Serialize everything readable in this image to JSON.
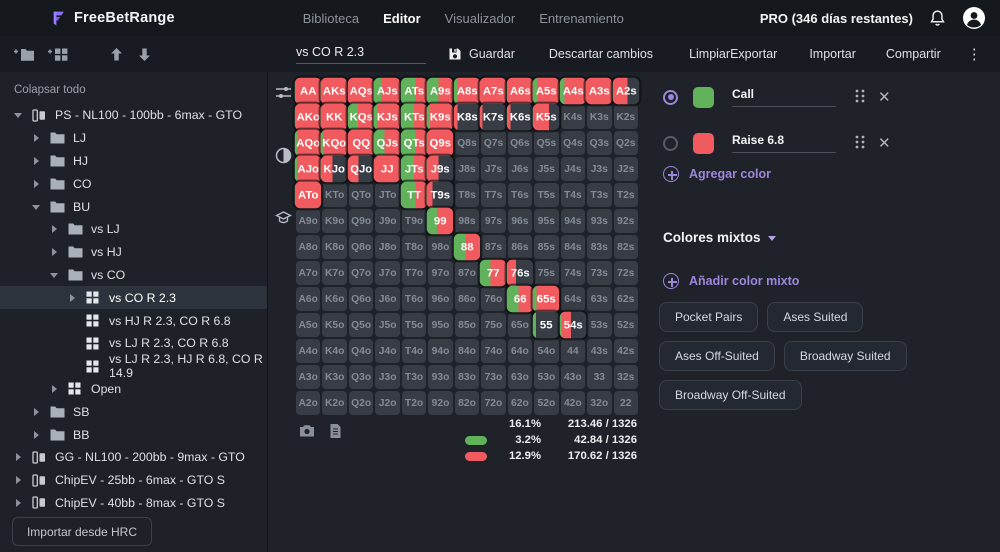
{
  "header": {
    "brand": "FreeBetRange",
    "tabs": [
      {
        "label": "Biblioteca",
        "active": false
      },
      {
        "label": "Editor",
        "active": true
      },
      {
        "label": "Visualizador",
        "active": false
      },
      {
        "label": "Entrenamiento",
        "active": false
      }
    ],
    "pro_label": "PRO (346 días restantes)",
    "icons": [
      "bell-icon",
      "avatar-icon"
    ]
  },
  "toolbar": {
    "left_icons": [
      "add-folder-icon",
      "add-range-icon",
      "move-up-icon",
      "move-down-icon"
    ],
    "range_name": "vs CO R 2.3",
    "guardar": "Guardar",
    "descartar": "Descartar cambios",
    "limpiar": "Limpiar",
    "exportar": "Exportar",
    "importar": "Importar",
    "compartir": "Compartir",
    "menu_icon": "kebab-menu-icon"
  },
  "sidebar": {
    "collapse_label": "Colapsar todo",
    "import_button": "Importar desde HRC",
    "items": [
      {
        "label": "PS - NL100 - 100bb - 6max - GTO",
        "depth": 0,
        "icon": "deck",
        "caret": "down",
        "selected": false
      },
      {
        "label": "LJ",
        "depth": 1,
        "icon": "folder",
        "caret": "right",
        "selected": false
      },
      {
        "label": "HJ",
        "depth": 1,
        "icon": "folder",
        "caret": "right",
        "selected": false
      },
      {
        "label": "CO",
        "depth": 1,
        "icon": "folder",
        "caret": "right",
        "selected": false
      },
      {
        "label": "BU",
        "depth": 1,
        "icon": "folder",
        "caret": "down",
        "selected": false
      },
      {
        "label": "vs LJ",
        "depth": 2,
        "icon": "folder",
        "caret": "right",
        "selected": false
      },
      {
        "label": "vs HJ",
        "depth": 2,
        "icon": "folder",
        "caret": "right",
        "selected": false
      },
      {
        "label": "vs CO",
        "depth": 2,
        "icon": "folder",
        "caret": "down",
        "selected": false
      },
      {
        "label": "vs CO R 2.3",
        "depth": 3,
        "icon": "range",
        "caret": "right",
        "selected": true
      },
      {
        "label": "vs HJ R 2.3, CO R 6.8",
        "depth": 3,
        "icon": "range",
        "caret": null,
        "selected": false
      },
      {
        "label": "vs LJ R 2.3, CO R 6.8",
        "depth": 3,
        "icon": "range",
        "caret": null,
        "selected": false
      },
      {
        "label": "vs LJ R 2.3, HJ R 6.8, CO R 14.9",
        "depth": 3,
        "icon": "range",
        "caret": null,
        "selected": false
      },
      {
        "label": "Open",
        "depth": 2,
        "icon": "range",
        "caret": "right",
        "selected": false
      },
      {
        "label": "SB",
        "depth": 1,
        "icon": "folder",
        "caret": "right",
        "selected": false
      },
      {
        "label": "BB",
        "depth": 1,
        "icon": "folder",
        "caret": "right",
        "selected": false
      },
      {
        "label": "GG - NL100 - 200bb - 9max - GTO",
        "depth": 0,
        "icon": "deck",
        "caret": "right",
        "selected": false
      },
      {
        "label": "ChipEV - 25bb - 6max - GTO S",
        "depth": 0,
        "icon": "deck",
        "caret": "right",
        "selected": false
      },
      {
        "label": "ChipEV - 40bb - 8max - GTO S",
        "depth": 0,
        "icon": "deck",
        "caret": "right",
        "selected": false
      }
    ]
  },
  "editor": {
    "strip_icons": [
      "sliders-icon",
      "contrast-icon",
      "training-icon"
    ],
    "footer_icons": [
      "camera-icon",
      "copy-icon"
    ]
  },
  "grid": {
    "fold_color": "#373c45",
    "cells": [
      [
        [
          "AA",
          0,
          100
        ],
        [
          "AKs",
          0,
          100
        ],
        [
          "AQs",
          0,
          100
        ],
        [
          "AJs",
          30,
          70
        ],
        [
          "ATs",
          55,
          45
        ],
        [
          "A9s",
          45,
          55
        ],
        [
          "A8s",
          15,
          85
        ],
        [
          "A7s",
          0,
          100
        ],
        [
          "A6s",
          0,
          100
        ],
        [
          "A5s",
          18,
          82
        ],
        [
          "A4s",
          18,
          82
        ],
        [
          "A3s",
          0,
          100
        ],
        [
          "A2s",
          0,
          55
        ]
      ],
      [
        [
          "AKo",
          0,
          100
        ],
        [
          "KK",
          0,
          100
        ],
        [
          "KQs",
          38,
          62
        ],
        [
          "KJs",
          12,
          88
        ],
        [
          "KTs",
          50,
          50
        ],
        [
          "K9s",
          12,
          88
        ],
        [
          "K8s",
          0,
          15
        ],
        [
          "K7s",
          0,
          10
        ],
        [
          "K6s",
          0,
          15
        ],
        [
          "K5s",
          0,
          62
        ],
        [
          "K4s",
          0,
          0
        ],
        [
          "K3s",
          0,
          0
        ],
        [
          "K2s",
          0,
          0
        ]
      ],
      [
        [
          "AQo",
          10,
          90
        ],
        [
          "KQo",
          8,
          92
        ],
        [
          "QQ",
          0,
          100
        ],
        [
          "QJs",
          40,
          60
        ],
        [
          "QTs",
          55,
          45
        ],
        [
          "Q9s",
          0,
          100
        ],
        [
          "Q8s",
          0,
          0
        ],
        [
          "Q7s",
          0,
          0
        ],
        [
          "Q6s",
          0,
          0
        ],
        [
          "Q5s",
          0,
          0
        ],
        [
          "Q4s",
          0,
          0
        ],
        [
          "Q3s",
          0,
          0
        ],
        [
          "Q2s",
          0,
          0
        ]
      ],
      [
        [
          "AJo",
          8,
          92
        ],
        [
          "KJo",
          0,
          45
        ],
        [
          "QJo",
          0,
          40
        ],
        [
          "JJ",
          0,
          100
        ],
        [
          "JTs",
          50,
          50
        ],
        [
          "J9s",
          0,
          45
        ],
        [
          "J8s",
          0,
          0
        ],
        [
          "J7s",
          0,
          0
        ],
        [
          "J6s",
          0,
          0
        ],
        [
          "J5s",
          0,
          0
        ],
        [
          "J4s",
          0,
          0
        ],
        [
          "J3s",
          0,
          0
        ],
        [
          "J2s",
          0,
          0
        ]
      ],
      [
        [
          "ATo",
          0,
          100
        ],
        [
          "KTo",
          0,
          0
        ],
        [
          "QTo",
          0,
          0
        ],
        [
          "JTo",
          0,
          0
        ],
        [
          "TT",
          55,
          45
        ],
        [
          "T9s",
          0,
          22
        ],
        [
          "T8s",
          0,
          0
        ],
        [
          "T7s",
          0,
          0
        ],
        [
          "T6s",
          0,
          0
        ],
        [
          "T5s",
          0,
          0
        ],
        [
          "T4s",
          0,
          0
        ],
        [
          "T3s",
          0,
          0
        ],
        [
          "T2s",
          0,
          0
        ]
      ],
      [
        [
          "A9o",
          0,
          0
        ],
        [
          "K9o",
          0,
          0
        ],
        [
          "Q9o",
          0,
          0
        ],
        [
          "J9o",
          0,
          0
        ],
        [
          "T9o",
          0,
          0
        ],
        [
          "99",
          38,
          62
        ],
        [
          "98s",
          0,
          0
        ],
        [
          "97s",
          0,
          0
        ],
        [
          "96s",
          0,
          0
        ],
        [
          "95s",
          0,
          0
        ],
        [
          "94s",
          0,
          0
        ],
        [
          "93s",
          0,
          0
        ],
        [
          "92s",
          0,
          0
        ]
      ],
      [
        [
          "A8o",
          0,
          0
        ],
        [
          "K8o",
          0,
          0
        ],
        [
          "Q8o",
          0,
          0
        ],
        [
          "J8o",
          0,
          0
        ],
        [
          "T8o",
          0,
          0
        ],
        [
          "98o",
          0,
          0
        ],
        [
          "88",
          45,
          55
        ],
        [
          "87s",
          0,
          0
        ],
        [
          "86s",
          0,
          0
        ],
        [
          "85s",
          0,
          0
        ],
        [
          "84s",
          0,
          0
        ],
        [
          "83s",
          0,
          0
        ],
        [
          "82s",
          0,
          0
        ]
      ],
      [
        [
          "A7o",
          0,
          0
        ],
        [
          "K7o",
          0,
          0
        ],
        [
          "Q7o",
          0,
          0
        ],
        [
          "J7o",
          0,
          0
        ],
        [
          "T7o",
          0,
          0
        ],
        [
          "97o",
          0,
          0
        ],
        [
          "87o",
          0,
          0
        ],
        [
          "77",
          40,
          60
        ],
        [
          "76s",
          0,
          35
        ],
        [
          "75s",
          0,
          0
        ],
        [
          "74s",
          0,
          0
        ],
        [
          "73s",
          0,
          0
        ],
        [
          "72s",
          0,
          0
        ]
      ],
      [
        [
          "A6o",
          0,
          0
        ],
        [
          "K6o",
          0,
          0
        ],
        [
          "Q6o",
          0,
          0
        ],
        [
          "J6o",
          0,
          0
        ],
        [
          "T6o",
          0,
          0
        ],
        [
          "96o",
          0,
          0
        ],
        [
          "86o",
          0,
          0
        ],
        [
          "76o",
          0,
          0
        ],
        [
          "66",
          45,
          55
        ],
        [
          "65s",
          14,
          86
        ],
        [
          "64s",
          0,
          0
        ],
        [
          "63s",
          0,
          0
        ],
        [
          "62s",
          0,
          0
        ]
      ],
      [
        [
          "A5o",
          0,
          0
        ],
        [
          "K5o",
          0,
          0
        ],
        [
          "Q5o",
          0,
          0
        ],
        [
          "J5o",
          0,
          0
        ],
        [
          "T5o",
          0,
          0
        ],
        [
          "95o",
          0,
          0
        ],
        [
          "85o",
          0,
          0
        ],
        [
          "75o",
          0,
          0
        ],
        [
          "65o",
          0,
          0
        ],
        [
          "55",
          12,
          0
        ],
        [
          "54s",
          6,
          36
        ],
        [
          "53s",
          0,
          0
        ],
        [
          "52s",
          0,
          0
        ]
      ],
      [
        [
          "A4o",
          0,
          0
        ],
        [
          "K4o",
          0,
          0
        ],
        [
          "Q4o",
          0,
          0
        ],
        [
          "J4o",
          0,
          0
        ],
        [
          "T4o",
          0,
          0
        ],
        [
          "94o",
          0,
          0
        ],
        [
          "84o",
          0,
          0
        ],
        [
          "74o",
          0,
          0
        ],
        [
          "64o",
          0,
          0
        ],
        [
          "54o",
          0,
          0
        ],
        [
          "44",
          0,
          0
        ],
        [
          "43s",
          0,
          0
        ],
        [
          "42s",
          0,
          0
        ]
      ],
      [
        [
          "A3o",
          0,
          0
        ],
        [
          "K3o",
          0,
          0
        ],
        [
          "Q3o",
          0,
          0
        ],
        [
          "J3o",
          0,
          0
        ],
        [
          "T3o",
          0,
          0
        ],
        [
          "93o",
          0,
          0
        ],
        [
          "83o",
          0,
          0
        ],
        [
          "73o",
          0,
          0
        ],
        [
          "63o",
          0,
          0
        ],
        [
          "53o",
          0,
          0
        ],
        [
          "43o",
          0,
          0
        ],
        [
          "33",
          0,
          0
        ],
        [
          "32s",
          0,
          0
        ]
      ],
      [
        [
          "A2o",
          0,
          0
        ],
        [
          "K2o",
          0,
          0
        ],
        [
          "Q2o",
          0,
          0
        ],
        [
          "J2o",
          0,
          0
        ],
        [
          "T2o",
          0,
          0
        ],
        [
          "92o",
          0,
          0
        ],
        [
          "82o",
          0,
          0
        ],
        [
          "72o",
          0,
          0
        ],
        [
          "62o",
          0,
          0
        ],
        [
          "52o",
          0,
          0
        ],
        [
          "42o",
          0,
          0
        ],
        [
          "32o",
          0,
          0
        ],
        [
          "22",
          0,
          0
        ]
      ]
    ]
  },
  "stats": [
    {
      "color": null,
      "percent": "16.1%",
      "ratio": "213.46 / 1326"
    },
    {
      "color": "#61b25b",
      "percent": "3.2%",
      "ratio": "42.84 / 1326"
    },
    {
      "color": "#f15b5f",
      "percent": "12.9%",
      "ratio": "170.62 / 1326"
    }
  ],
  "panel": {
    "colors": [
      {
        "name": "Call",
        "color": "#61b25b",
        "selected": true
      },
      {
        "name": "Raise 6.8",
        "color": "#f15b5f",
        "selected": false
      }
    ],
    "agregar_color": "Agregar color",
    "mixed_title": "Colores mixtos",
    "add_mixed": "Añadir color mixto",
    "presets": [
      "Pocket Pairs",
      "Ases Suited",
      "Ases Off-Suited",
      "Broadway Suited",
      "Broadway Off-Suited"
    ],
    "accent": "#9d87dd"
  }
}
